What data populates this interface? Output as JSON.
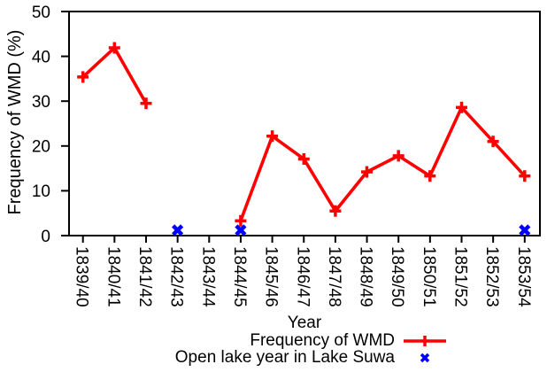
{
  "chart_data": {
    "type": "line",
    "title": "",
    "xlabel": "Year",
    "ylabel": "Frequency of WMD (%)",
    "ylim": [
      0,
      50
    ],
    "yticks": [
      0,
      10,
      20,
      30,
      40,
      50
    ],
    "grid": false,
    "legend_position": "bottom-right-below-plot",
    "categories": [
      "1839/40",
      "1840/41",
      "1841/42",
      "1842/43",
      "1843/44",
      "1844/45",
      "1845/46",
      "1846/47",
      "1847/48",
      "1848/49",
      "1849/50",
      "1850/51",
      "1851/52",
      "1852/53",
      "1853/54"
    ],
    "series": [
      {
        "name": "Frequency of WMD",
        "color": "#ff0000",
        "marker": "plus",
        "line": true,
        "values": [
          35.4,
          41.9,
          29.5,
          null,
          null,
          3.3,
          22.2,
          17.1,
          5.5,
          14.2,
          17.8,
          13.3,
          28.6,
          21.0,
          13.3
        ]
      },
      {
        "name": "Open lake year in Lake Suwa",
        "color": "#0000ff",
        "marker": "x-cross",
        "line": false,
        "values": [
          null,
          null,
          null,
          1.2,
          null,
          1.2,
          null,
          null,
          null,
          null,
          null,
          null,
          null,
          null,
          1.2
        ]
      }
    ],
    "axis_color": "#000000"
  }
}
